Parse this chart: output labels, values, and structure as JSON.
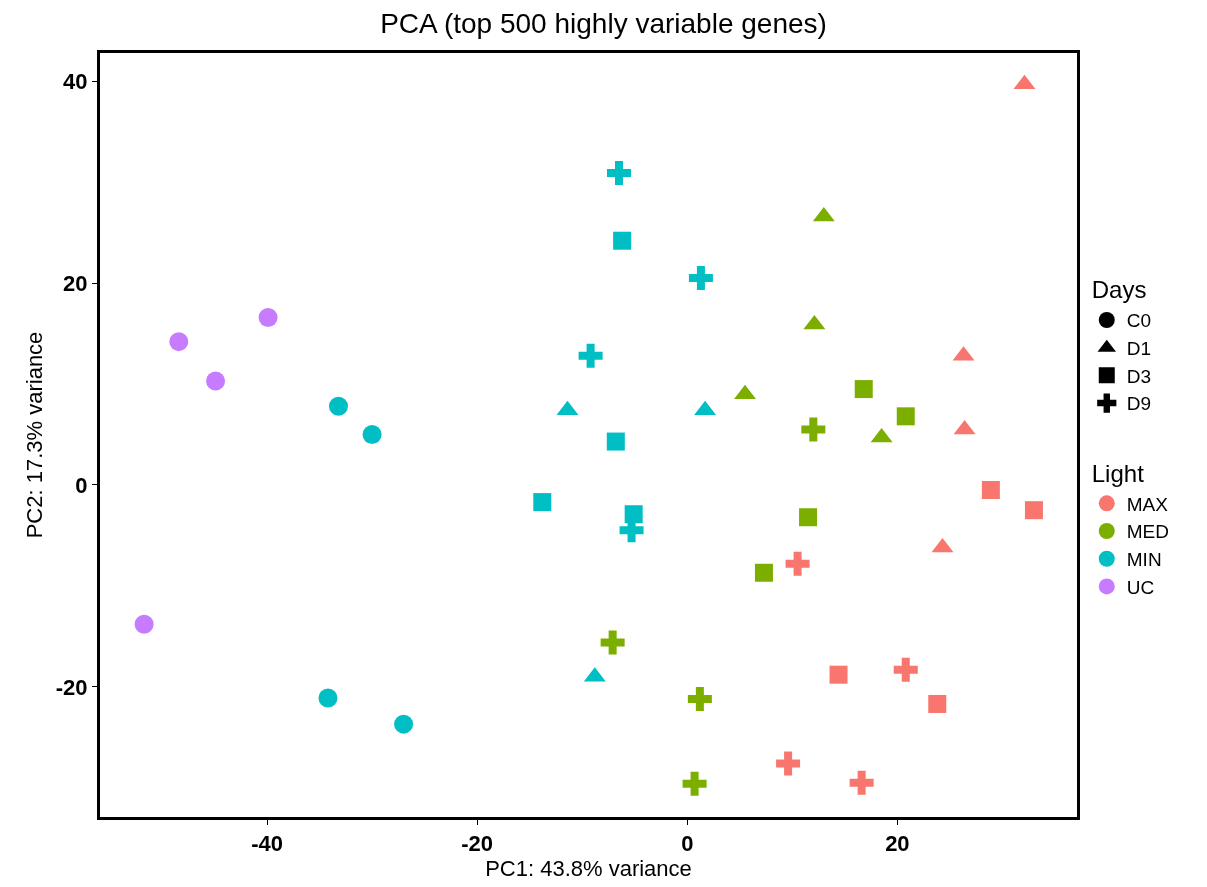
{
  "chart_data": {
    "type": "scatter",
    "title": "PCA (top 500 highly variable genes)",
    "xlabel": "PC1: 43.8% variance",
    "ylabel": "PC2: 17.3% variance",
    "xlim": [
      -55.9,
      37.1
    ],
    "ylim": [
      -32.9,
      42.8
    ],
    "xticks": [
      -40,
      -20,
      0,
      20
    ],
    "yticks": [
      -20,
      0,
      20,
      40
    ],
    "legend": "right",
    "legend_title": [
      "Days",
      "Light"
    ],
    "series": [
      {
        "color": "#f8766d",
        "marker": "triangle",
        "x": [
          32.1,
          26.3,
          26.4,
          24.3
        ],
        "values": [
          39.7,
          12.8,
          5.5,
          -6.2
        ]
      },
      {
        "color": "#f8766d",
        "marker": "square",
        "x": [
          28.9,
          33.0,
          14.4,
          23.8
        ],
        "values": [
          -0.5,
          -2.5,
          -18.8,
          -21.7
        ]
      },
      {
        "color": "#f8766d",
        "marker": "cross",
        "x": [
          10.5,
          20.8,
          9.6,
          16.6
        ],
        "values": [
          -7.8,
          -18.3,
          -27.6,
          -29.5
        ]
      },
      {
        "color": "#7cae00",
        "marker": "triangle",
        "x": [
          13.0,
          12.1,
          5.5,
          18.5
        ],
        "values": [
          26.6,
          15.9,
          9.0,
          4.7
        ]
      },
      {
        "color": "#7cae00",
        "marker": "square",
        "x": [
          16.8,
          20.8,
          11.5,
          7.3
        ],
        "values": [
          9.5,
          6.8,
          -3.2,
          -8.7
        ]
      },
      {
        "color": "#7cae00",
        "marker": "cross",
        "x": [
          12.0,
          -7.1,
          1.2,
          0.7
        ],
        "values": [
          5.5,
          -15.6,
          -21.2,
          -29.6
        ]
      },
      {
        "color": "#00bfc4",
        "marker": "circle",
        "x": [
          -33.2,
          -30.0,
          -34.2,
          -27.0
        ],
        "values": [
          7.8,
          5.0,
          -21.1,
          -23.7
        ]
      },
      {
        "color": "#00bfc4",
        "marker": "triangle",
        "x": [
          -11.4,
          1.7,
          -8.8
        ],
        "values": [
          7.4,
          7.4,
          -19.0
        ]
      },
      {
        "color": "#00bfc4",
        "marker": "square",
        "x": [
          -6.2,
          -6.8,
          -13.8,
          -5.1
        ],
        "values": [
          24.2,
          4.3,
          -1.7,
          -2.9
        ]
      },
      {
        "color": "#00bfc4",
        "marker": "cross",
        "x": [
          -6.5,
          1.3,
          -9.2,
          -5.3
        ],
        "values": [
          30.9,
          20.5,
          12.8,
          -4.5
        ]
      },
      {
        "color": "#c77cff",
        "marker": "circle",
        "x": [
          -48.4,
          -44.9,
          -39.9,
          -51.7
        ],
        "values": [
          14.2,
          10.3,
          16.6,
          -13.8
        ]
      },
      {
        "name": "C0",
        "color": "#000000",
        "marker": "circle"
      },
      {
        "name": "D1",
        "color": "#000000",
        "marker": "triangle"
      },
      {
        "name": "D3",
        "color": "#000000",
        "marker": "square"
      },
      {
        "name": "D9",
        "color": "#000000",
        "marker": "cross"
      },
      {
        "name": "MAX",
        "color": "#f8766d"
      },
      {
        "name": "MED",
        "color": "#7cae00"
      },
      {
        "name": "MIN",
        "color": "#00bfc4"
      },
      {
        "name": "UC",
        "color": "#c77cff"
      }
    ]
  }
}
